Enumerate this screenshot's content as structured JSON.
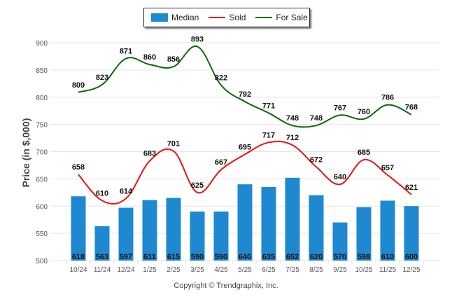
{
  "chart_data": {
    "type": "bar",
    "title": "",
    "xlabel": "",
    "ylabel": "Price (in $,000)",
    "ylim": [
      500,
      900
    ],
    "yticks": [
      500,
      550,
      600,
      650,
      700,
      750,
      800,
      850,
      900
    ],
    "grid": true,
    "legend_position": "top-center",
    "categories": [
      "10/24",
      "11/24",
      "12/24",
      "1/25",
      "2/25",
      "3/25",
      "4/25",
      "5/25",
      "6/25",
      "7/25",
      "8/25",
      "9/25",
      "10/25",
      "11/25",
      "12/25"
    ],
    "series": [
      {
        "name": "Median",
        "type": "bar",
        "color": "#1e88d0",
        "values": [
          618,
          563,
          597,
          611,
          615,
          590,
          590,
          640,
          635,
          652,
          620,
          570,
          598,
          610,
          600
        ]
      },
      {
        "name": "Sold",
        "type": "line",
        "color": "#ee1111",
        "values": [
          658,
          610,
          614,
          683,
          701,
          625,
          667,
          695,
          717,
          712,
          672,
          640,
          685,
          657,
          621
        ]
      },
      {
        "name": "For Sale",
        "type": "line",
        "color": "#116611",
        "values": [
          809,
          823,
          871,
          860,
          856,
          893,
          822,
          792,
          771,
          748,
          748,
          767,
          760,
          786,
          768
        ]
      }
    ]
  },
  "legend": {
    "median_label": "Median",
    "sold_label": "Sold",
    "for_sale_label": "For Sale"
  },
  "footer": {
    "copyright": "Copyright © Trendgraphix, Inc."
  }
}
